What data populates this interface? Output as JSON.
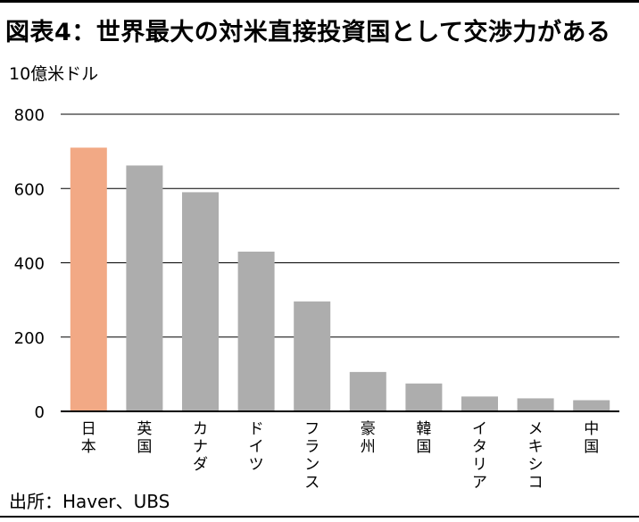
{
  "title": "図表4：世界最大の対米直接投資国として交渉力がある",
  "source": "出所：Haver、UBS",
  "chart_data": {
    "type": "bar",
    "ylabel": "10億米ドル",
    "ylim": [
      0,
      800
    ],
    "yticks": [
      0,
      200,
      400,
      600,
      800
    ],
    "grid": true,
    "categories": [
      "日本",
      "英国",
      "カナダ",
      "ドイツ",
      "フランス",
      "豪州",
      "韓国",
      "イタリア",
      "メキシコ",
      "中国"
    ],
    "values": [
      710,
      662,
      590,
      430,
      296,
      106,
      75,
      40,
      35,
      30
    ],
    "colors": {
      "highlight": "#F2A985",
      "default": "#ADADAD"
    },
    "highlight_index": 0
  }
}
